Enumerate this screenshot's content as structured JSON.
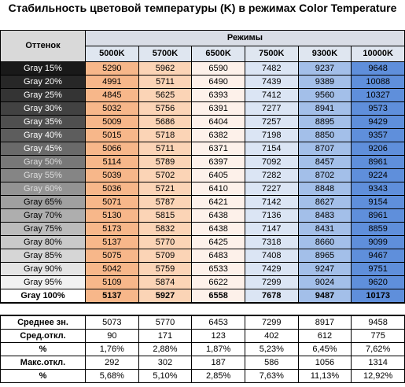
{
  "title": "Стабильность цветовой температуры (K) в режимах Color Temperature",
  "header": {
    "row_label": "Оттенок",
    "group": "Режимы",
    "columns": [
      "5000K",
      "5700K",
      "6500K",
      "7500K",
      "9300K",
      "10000K"
    ]
  },
  "table": {
    "rows": [
      [
        "Gray 15%",
        5290,
        5962,
        6590,
        7482,
        9237,
        9648
      ],
      [
        "Gray 20%",
        4991,
        5711,
        6490,
        7439,
        9389,
        10088
      ],
      [
        "Gray 25%",
        4845,
        5625,
        6393,
        7412,
        9560,
        10327
      ],
      [
        "Gray 30%",
        5032,
        5756,
        6391,
        7277,
        8941,
        9573
      ],
      [
        "Gray 35%",
        5009,
        5686,
        6404,
        7257,
        8895,
        9429
      ],
      [
        "Gray 40%",
        5015,
        5718,
        6382,
        7198,
        8850,
        9357
      ],
      [
        "Gray 45%",
        5066,
        5711,
        6371,
        7154,
        8707,
        9206
      ],
      [
        "Gray 50%",
        5114,
        5789,
        6397,
        7092,
        8457,
        8961
      ],
      [
        "Gray 55%",
        5039,
        5702,
        6405,
        7282,
        8702,
        9224
      ],
      [
        "Gray 60%",
        5036,
        5721,
        6410,
        7227,
        8848,
        9343
      ],
      [
        "Gray 65%",
        5071,
        5787,
        6421,
        7142,
        8627,
        9154
      ],
      [
        "Gray 70%",
        5130,
        5815,
        6438,
        7136,
        8483,
        8961
      ],
      [
        "Gray 75%",
        5173,
        5832,
        6438,
        7147,
        8431,
        8859
      ],
      [
        "Gray 80%",
        5137,
        5770,
        6425,
        7318,
        8660,
        9099
      ],
      [
        "Gray 85%",
        5075,
        5709,
        6483,
        7408,
        8965,
        9467
      ],
      [
        "Gray 90%",
        5042,
        5759,
        6533,
        7429,
        9247,
        9751
      ],
      [
        "Gray 95%",
        5109,
        5874,
        6622,
        7299,
        9024,
        9620
      ],
      [
        "Gray 100%",
        5137,
        5927,
        6558,
        7678,
        9487,
        10173
      ]
    ]
  },
  "stats": {
    "rows": [
      [
        "Среднее зн.",
        5073,
        5770,
        6453,
        7299,
        8917,
        9458
      ],
      [
        "Сред.откл.",
        90,
        171,
        123,
        402,
        612,
        775
      ],
      [
        "%",
        "1,76%",
        "2,88%",
        "1,87%",
        "5,23%",
        "6,45%",
        "7,62%"
      ],
      [
        "Макс.откл.",
        292,
        302,
        187,
        586,
        1056,
        1314
      ],
      [
        "%",
        "5,68%",
        "5,10%",
        "2,85%",
        "7,63%",
        "11,13%",
        "12,92%"
      ]
    ]
  }
}
